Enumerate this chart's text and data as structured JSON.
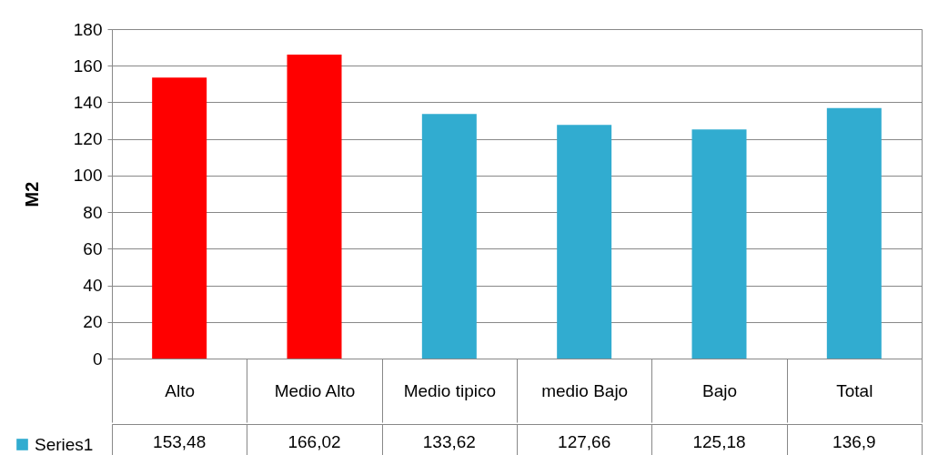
{
  "chart_data": {
    "type": "bar",
    "ylabel": "M2",
    "categories": [
      "Alto",
      "Medio Alto",
      "Medio tipico",
      "medio Bajo",
      "Bajo",
      "Total"
    ],
    "series": [
      {
        "name": "Series1",
        "color": "#31acd0",
        "colors": [
          "#ff0000",
          "#ff0000",
          "#31acd0",
          "#31acd0",
          "#31acd0",
          "#31acd0"
        ],
        "values": [
          153.48,
          166.02,
          133.62,
          127.66,
          125.18,
          136.9
        ],
        "value_labels": [
          "153,48",
          "166,02",
          "133,62",
          "127,66",
          "125,18",
          "136,9"
        ]
      }
    ],
    "ylim": [
      0,
      180
    ],
    "yticks": [
      0,
      20,
      40,
      60,
      80,
      100,
      120,
      140,
      160,
      180
    ],
    "grid": "y",
    "legend": "bottom left"
  }
}
